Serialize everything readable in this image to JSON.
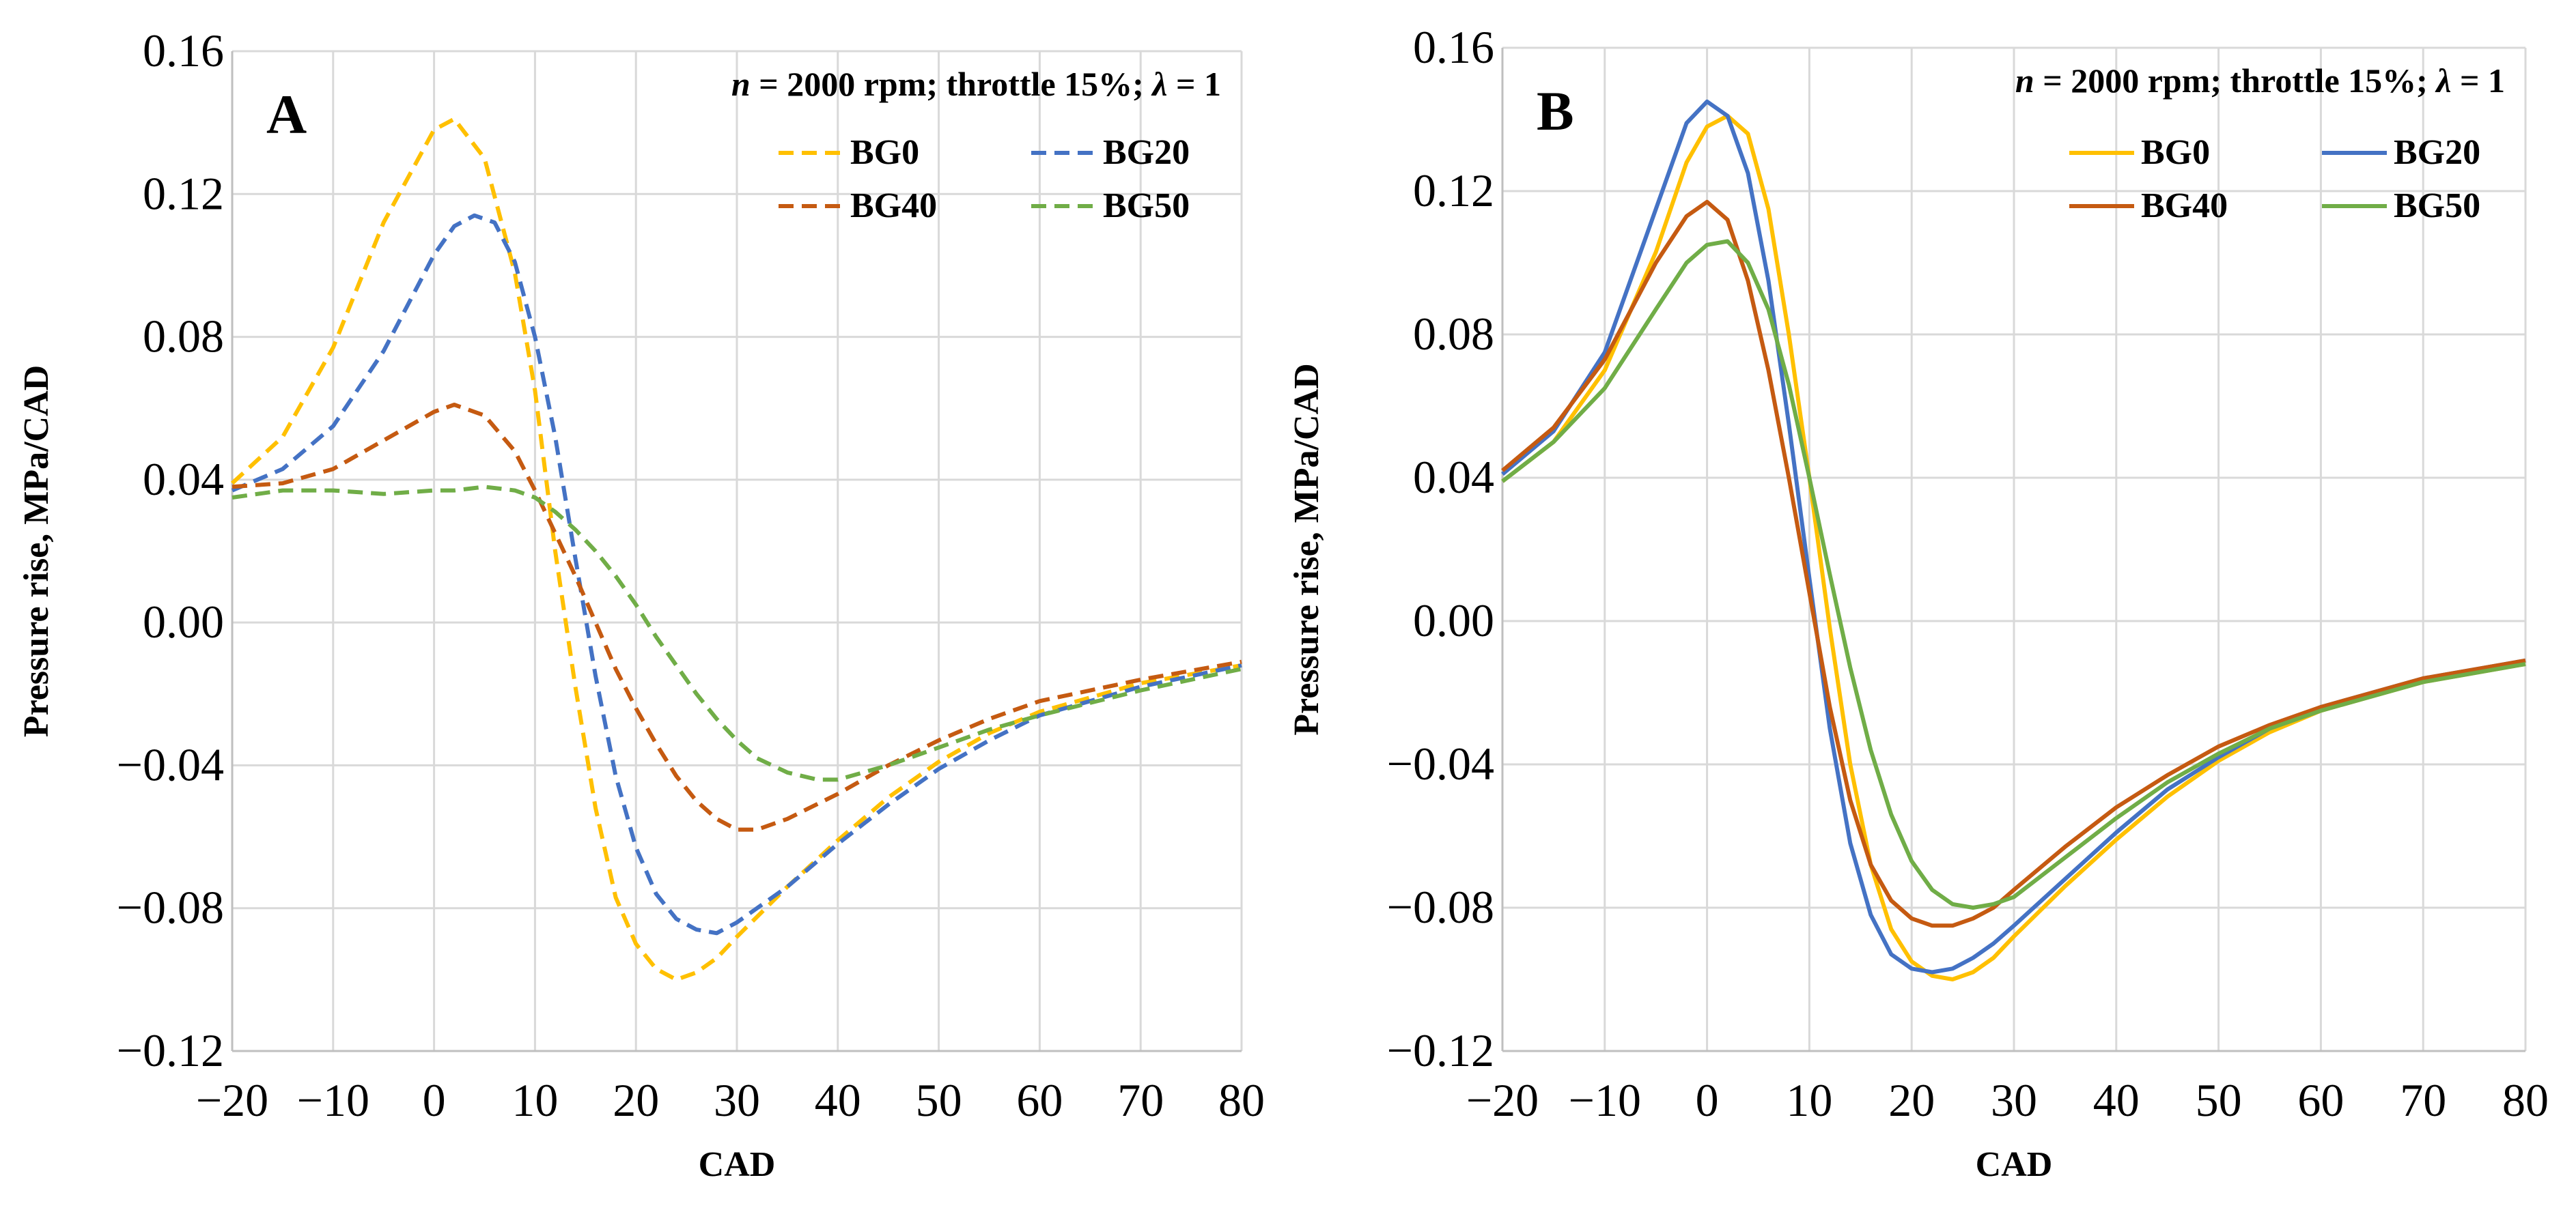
{
  "chart_data": [
    {
      "type": "line",
      "panel_label": "A",
      "annotation": {
        "n_var": "n",
        "text": " = 2000 rpm; throttle 15%; ",
        "lambda_var": "λ",
        "lambda_val": " = 1"
      },
      "xlabel": "CAD",
      "ylabel": "Pressure rise, MPa/CAD",
      "xlim": [
        -20,
        80
      ],
      "ylim": [
        -0.12,
        0.16
      ],
      "xticks": [
        -20,
        -10,
        0,
        10,
        20,
        30,
        40,
        50,
        60,
        70,
        80
      ],
      "xtick_labels": [
        "−20",
        "−10",
        "0",
        "10",
        "20",
        "30",
        "40",
        "50",
        "60",
        "70",
        "80"
      ],
      "yticks": [
        -0.12,
        -0.08,
        -0.04,
        0.0,
        0.04,
        0.08,
        0.12,
        0.16
      ],
      "ytick_labels": [
        "−0.12",
        "−0.08",
        "−0.04",
        "0.00",
        "0.04",
        "0.08",
        "0.12",
        "0.16"
      ],
      "line_style": "dashed",
      "legend_position": "top-right",
      "series": [
        {
          "name": "BG0",
          "color": "#FFC000",
          "x": [
            -20,
            -15,
            -10,
            -5,
            0,
            2,
            5,
            8,
            10,
            12,
            14,
            16,
            18,
            20,
            22,
            24,
            26,
            28,
            30,
            35,
            40,
            45,
            50,
            55,
            60,
            70,
            80
          ],
          "values": [
            0.039,
            0.052,
            0.077,
            0.112,
            0.138,
            0.141,
            0.13,
            0.098,
            0.065,
            0.02,
            -0.018,
            -0.052,
            -0.077,
            -0.09,
            -0.097,
            -0.1,
            -0.098,
            -0.094,
            -0.088,
            -0.074,
            -0.061,
            -0.049,
            -0.039,
            -0.031,
            -0.025,
            -0.017,
            -0.012
          ]
        },
        {
          "name": "BG20",
          "color": "#4472C4",
          "x": [
            -20,
            -15,
            -10,
            -5,
            0,
            2,
            4,
            6,
            8,
            10,
            12,
            14,
            16,
            18,
            20,
            22,
            24,
            26,
            28,
            30,
            35,
            40,
            45,
            50,
            55,
            60,
            70,
            80
          ],
          "values": [
            0.037,
            0.043,
            0.055,
            0.076,
            0.103,
            0.111,
            0.114,
            0.112,
            0.101,
            0.08,
            0.052,
            0.018,
            -0.015,
            -0.043,
            -0.063,
            -0.076,
            -0.083,
            -0.086,
            -0.087,
            -0.084,
            -0.074,
            -0.062,
            -0.051,
            -0.041,
            -0.033,
            -0.026,
            -0.018,
            -0.012
          ]
        },
        {
          "name": "BG40",
          "color": "#C55A11",
          "x": [
            -20,
            -15,
            -10,
            -5,
            0,
            2,
            5,
            8,
            10,
            12,
            14,
            16,
            18,
            20,
            22,
            24,
            26,
            28,
            30,
            32,
            35,
            40,
            45,
            50,
            55,
            60,
            70,
            80
          ],
          "values": [
            0.038,
            0.039,
            0.043,
            0.051,
            0.059,
            0.061,
            0.058,
            0.048,
            0.037,
            0.025,
            0.013,
            0.0,
            -0.013,
            -0.024,
            -0.034,
            -0.043,
            -0.05,
            -0.055,
            -0.058,
            -0.058,
            -0.055,
            -0.048,
            -0.04,
            -0.033,
            -0.027,
            -0.022,
            -0.016,
            -0.011
          ]
        },
        {
          "name": "BG50",
          "color": "#70AD47",
          "x": [
            -20,
            -15,
            -10,
            -5,
            0,
            2,
            5,
            8,
            10,
            12,
            14,
            16,
            18,
            20,
            22,
            24,
            26,
            28,
            30,
            32,
            35,
            38,
            40,
            45,
            50,
            55,
            60,
            70,
            80
          ],
          "values": [
            0.035,
            0.037,
            0.037,
            0.036,
            0.037,
            0.037,
            0.038,
            0.037,
            0.035,
            0.031,
            0.026,
            0.02,
            0.013,
            0.005,
            -0.004,
            -0.012,
            -0.02,
            -0.027,
            -0.033,
            -0.038,
            -0.042,
            -0.044,
            -0.044,
            -0.04,
            -0.035,
            -0.03,
            -0.026,
            -0.019,
            -0.013
          ]
        }
      ]
    },
    {
      "type": "line",
      "panel_label": "B",
      "annotation": {
        "n_var": "n",
        "text": " = 2000 rpm; throttle 15%; ",
        "lambda_var": "λ",
        "lambda_val": " = 1"
      },
      "xlabel": "CAD",
      "ylabel": "Pressure rise, MPa/CAD",
      "xlim": [
        -20,
        80
      ],
      "ylim": [
        -0.12,
        0.16
      ],
      "xticks": [
        -20,
        -10,
        0,
        10,
        20,
        30,
        40,
        50,
        60,
        70,
        80
      ],
      "xtick_labels": [
        "−20",
        "−10",
        "0",
        "10",
        "20",
        "30",
        "40",
        "50",
        "60",
        "70",
        "80"
      ],
      "yticks": [
        -0.12,
        -0.08,
        -0.04,
        0.0,
        0.04,
        0.08,
        0.12,
        0.16
      ],
      "ytick_labels": [
        "−0.12",
        "−0.08",
        "−0.04",
        "0.00",
        "0.04",
        "0.08",
        "0.12",
        "0.16"
      ],
      "line_style": "solid",
      "legend_position": "top-right",
      "series": [
        {
          "name": "BG0",
          "color": "#FFC000",
          "x": [
            -20,
            -15,
            -10,
            -5,
            -2,
            0,
            2,
            4,
            6,
            8,
            10,
            12,
            14,
            16,
            18,
            20,
            22,
            24,
            26,
            28,
            30,
            35,
            40,
            45,
            50,
            55,
            60,
            70,
            80
          ],
          "values": [
            0.039,
            0.05,
            0.07,
            0.103,
            0.128,
            0.138,
            0.141,
            0.136,
            0.115,
            0.08,
            0.04,
            -0.002,
            -0.04,
            -0.068,
            -0.086,
            -0.095,
            -0.099,
            -0.1,
            -0.098,
            -0.094,
            -0.088,
            -0.074,
            -0.061,
            -0.049,
            -0.039,
            -0.031,
            -0.025,
            -0.017,
            -0.012
          ]
        },
        {
          "name": "BG20",
          "color": "#4472C4",
          "x": [
            -20,
            -15,
            -10,
            -5,
            -2,
            0,
            2,
            4,
            6,
            8,
            10,
            12,
            14,
            16,
            18,
            20,
            22,
            24,
            26,
            28,
            30,
            35,
            40,
            45,
            50,
            55,
            60,
            70,
            80
          ],
          "values": [
            0.041,
            0.053,
            0.075,
            0.115,
            0.139,
            0.145,
            0.141,
            0.125,
            0.095,
            0.055,
            0.012,
            -0.03,
            -0.062,
            -0.082,
            -0.093,
            -0.097,
            -0.098,
            -0.097,
            -0.094,
            -0.09,
            -0.085,
            -0.072,
            -0.059,
            -0.047,
            -0.038,
            -0.03,
            -0.024,
            -0.016,
            -0.011
          ]
        },
        {
          "name": "BG40",
          "color": "#C55A11",
          "x": [
            -20,
            -15,
            -10,
            -5,
            -2,
            0,
            2,
            4,
            6,
            8,
            10,
            12,
            14,
            16,
            18,
            20,
            22,
            24,
            26,
            28,
            30,
            35,
            40,
            45,
            50,
            55,
            60,
            70,
            80
          ],
          "values": [
            0.042,
            0.054,
            0.073,
            0.1,
            0.113,
            0.117,
            0.112,
            0.095,
            0.07,
            0.04,
            0.008,
            -0.024,
            -0.05,
            -0.068,
            -0.078,
            -0.083,
            -0.085,
            -0.085,
            -0.083,
            -0.08,
            -0.075,
            -0.063,
            -0.052,
            -0.043,
            -0.035,
            -0.029,
            -0.024,
            -0.016,
            -0.011
          ]
        },
        {
          "name": "BG50",
          "color": "#70AD47",
          "x": [
            -20,
            -15,
            -10,
            -5,
            -2,
            0,
            2,
            4,
            6,
            8,
            10,
            12,
            14,
            16,
            18,
            20,
            22,
            24,
            26,
            28,
            30,
            35,
            40,
            45,
            50,
            55,
            60,
            70,
            80
          ],
          "values": [
            0.039,
            0.05,
            0.065,
            0.087,
            0.1,
            0.105,
            0.106,
            0.1,
            0.087,
            0.066,
            0.04,
            0.013,
            -0.013,
            -0.036,
            -0.054,
            -0.067,
            -0.075,
            -0.079,
            -0.08,
            -0.079,
            -0.077,
            -0.066,
            -0.055,
            -0.045,
            -0.037,
            -0.03,
            -0.025,
            -0.017,
            -0.012
          ]
        }
      ]
    }
  ]
}
